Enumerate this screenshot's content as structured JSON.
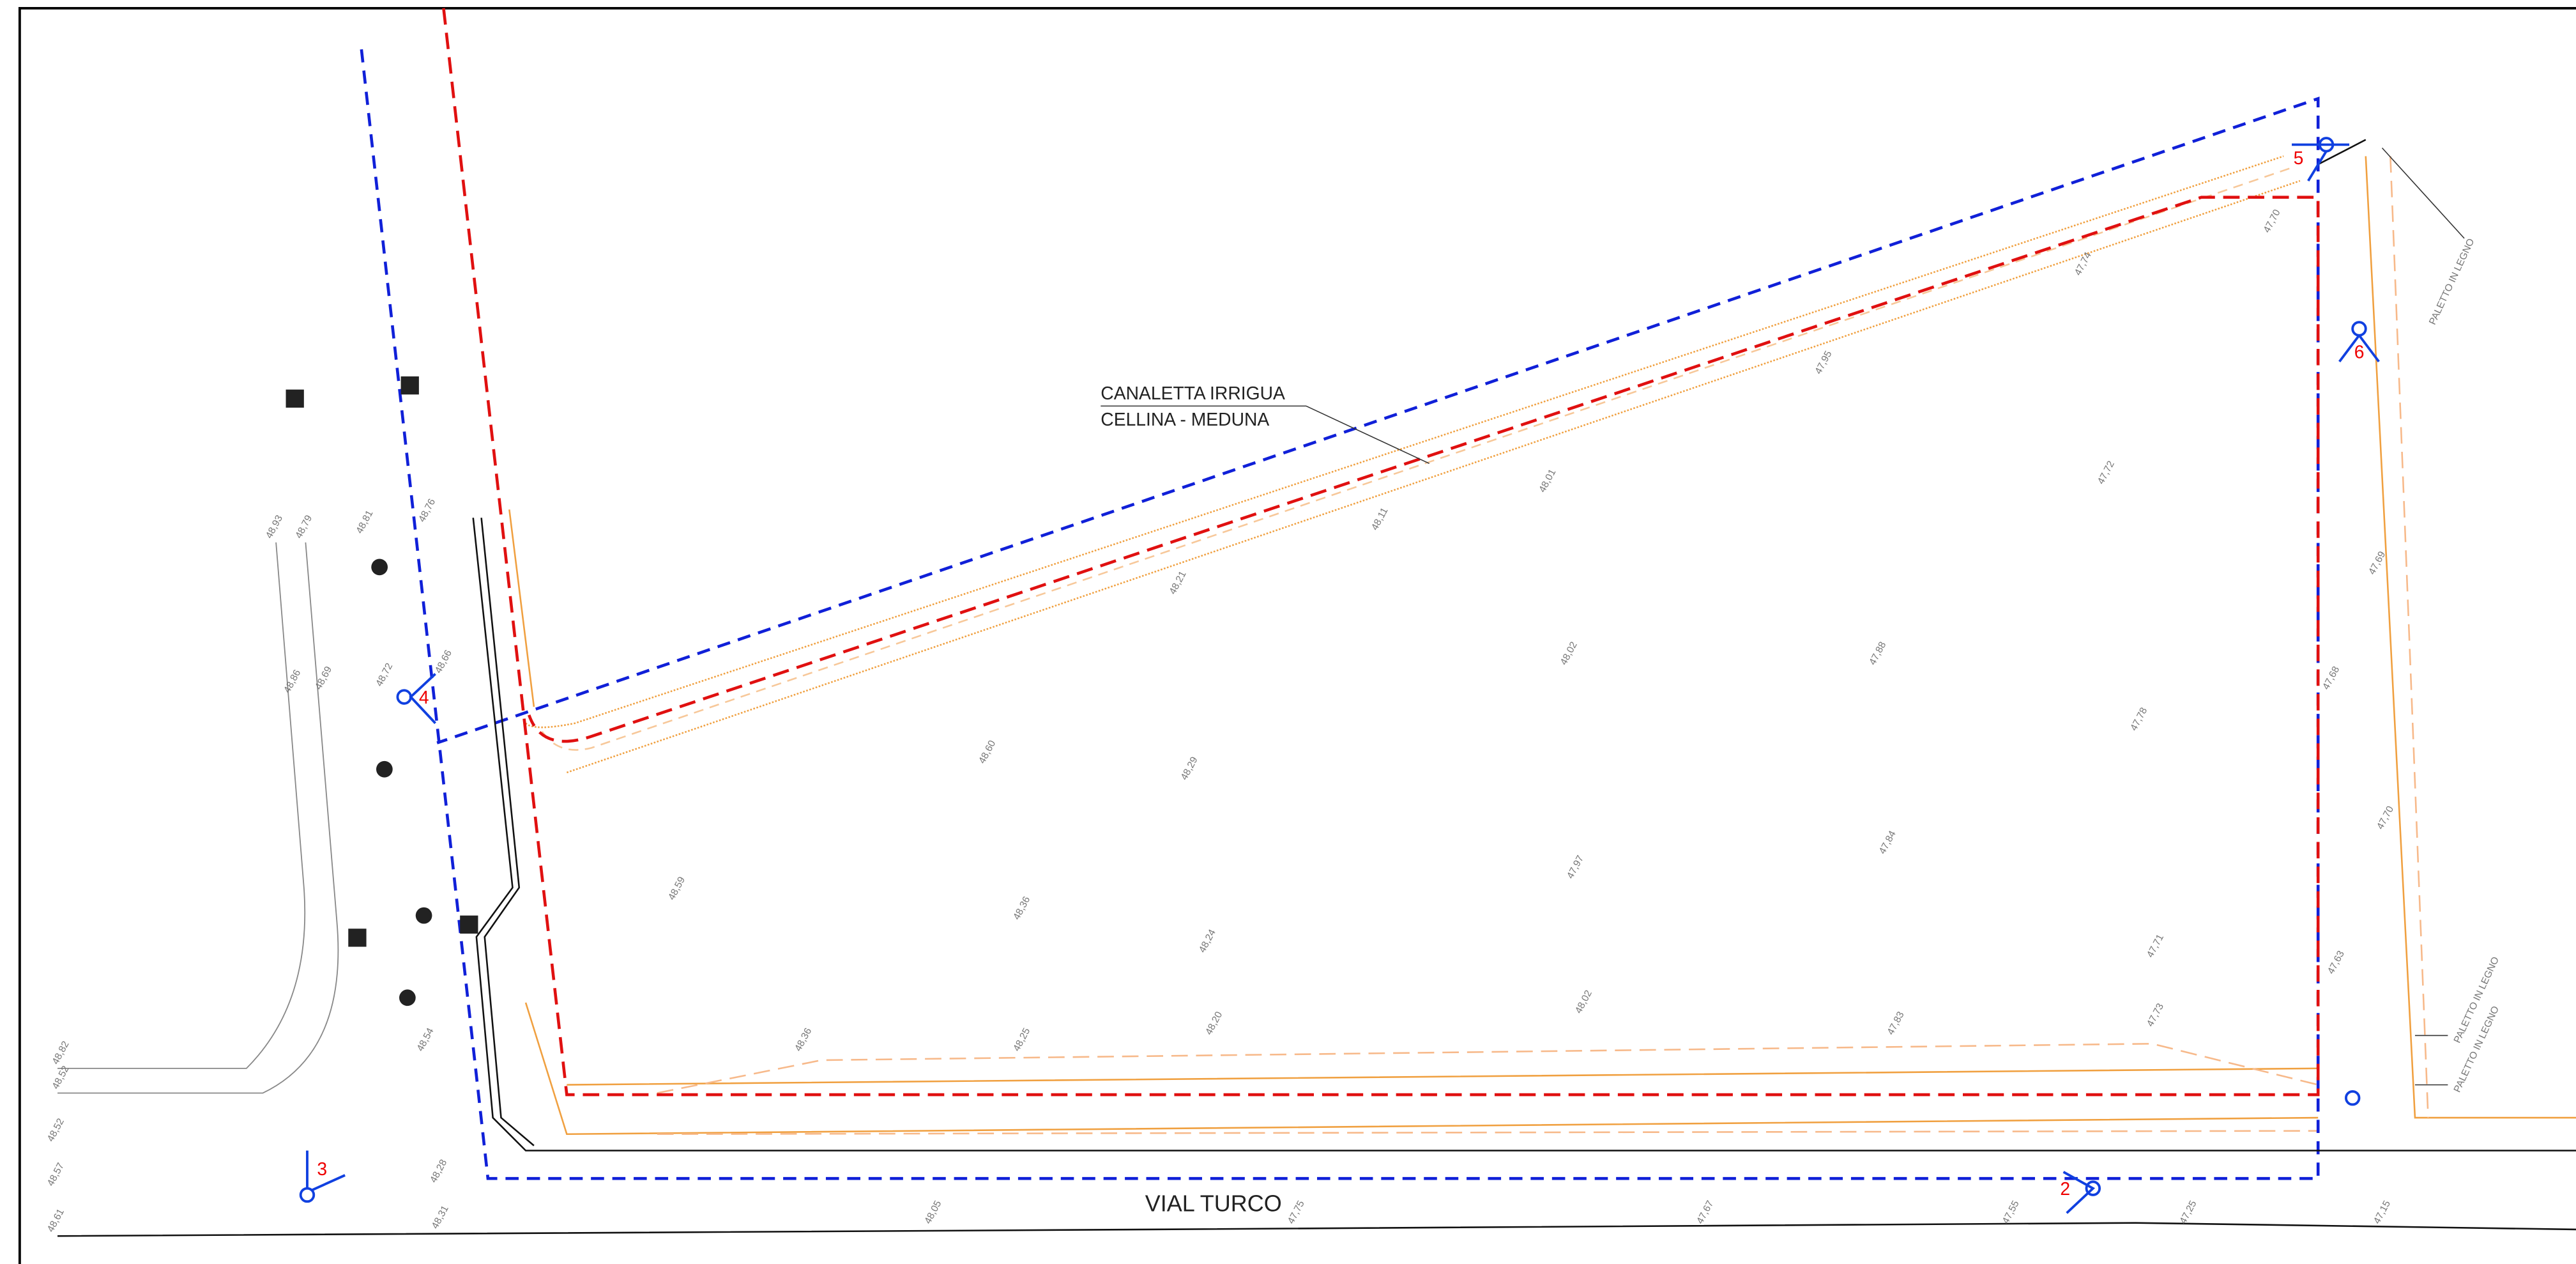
{
  "label_canal": [
    "CANALETTA IRRIGUA",
    "CELLINA - MEDUNA"
  ],
  "label_road": "VIAL TURCO",
  "label_posts": [
    "PALETTO IN LEGNO",
    "PALETTO IN LEGNO",
    "PALETTO IN LEGNO"
  ],
  "stations": [
    "2",
    "3",
    "4",
    "5",
    "6"
  ],
  "elevations": [
    "48,72",
    "48,66",
    "48,60",
    "48,29",
    "48,02",
    "47,88",
    "47,78",
    "47,72",
    "48,59",
    "48,36",
    "48,24",
    "47,97",
    "47,84",
    "47,71",
    "48,21",
    "48,11",
    "48,01",
    "47,95",
    "47,74",
    "47,70",
    "47,69",
    "47,68",
    "47,70",
    "47,63",
    "48,20",
    "48,02",
    "47,83",
    "47,73",
    "48,25",
    "48,36",
    "48,05",
    "47,75",
    "47,67",
    "47,55",
    "47,25",
    "47,15",
    "48,31",
    "48,28",
    "48,57",
    "48,52",
    "48,61",
    "48,82",
    "48,52",
    "48,93",
    "48,79",
    "48,81",
    "48,76",
    "48,69",
    "48,86",
    "48,54"
  ]
}
